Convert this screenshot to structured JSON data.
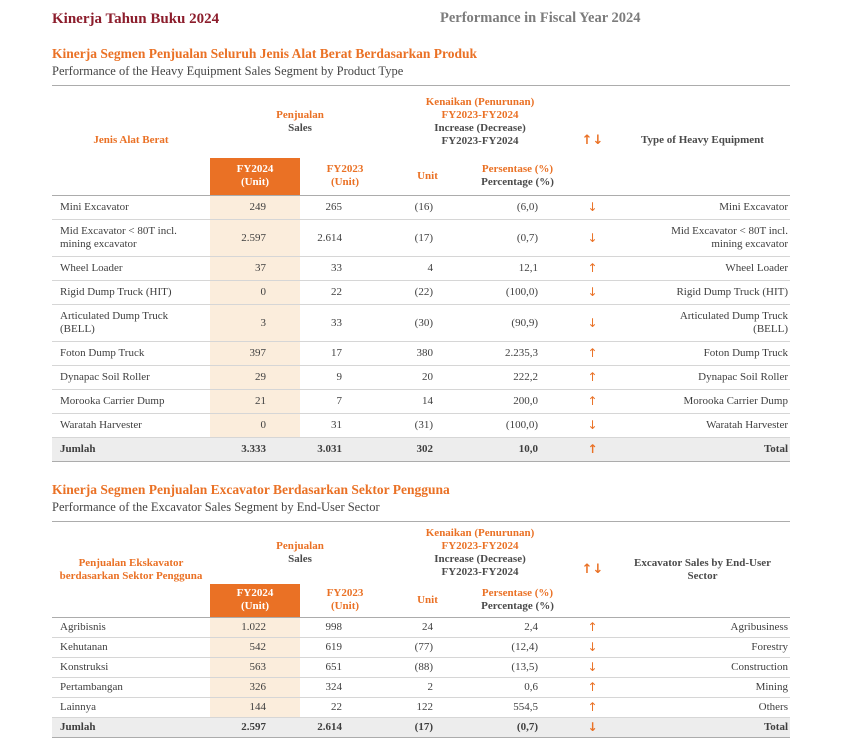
{
  "page": {
    "title_id": "Kinerja Tahun Buku 2024",
    "title_en": "Performance in Fiscal Year 2024"
  },
  "icons": {
    "updown": "↑↓",
    "up": "↑",
    "down": "↓"
  },
  "colors": {
    "accent": "#EA7125",
    "title_red": "#8C1D2C",
    "gray_title": "#7C7C7C",
    "text": "#3E3E3E",
    "header_dark": "#4B4B4B",
    "fy24_bg": "#FBEDDC",
    "total_bg": "#EDEDED",
    "line": "#D6D6D6",
    "line_strong": "#ACACAC"
  },
  "sections": [
    {
      "title_id": "Kinerja Segmen Penjualan Seluruh Jenis Alat Berat Berdasarkan Produk",
      "title_en": "Performance of the Heavy Equipment Sales Segment by Product Type",
      "table": {
        "col1": "Jenis Alat Berat",
        "sales_id": "Penjualan",
        "sales_en": "Sales",
        "change_l1": "Kenaikan (Penurunan)",
        "change_l2": "FY2023-FY2024",
        "change_l3": "Increase (Decrease)",
        "change_l4": "FY2023-FY2024",
        "col7": "Type of Heavy Equipment",
        "sub_fy2024_1": "FY2024",
        "sub_fy2024_2": "(Unit)",
        "sub_fy2023_1": "FY2023",
        "sub_fy2023_2": "(Unit)",
        "sub_unit": "Unit",
        "sub_pct_1": "Persentase (%)",
        "sub_pct_2": "Percentage (%)",
        "rows": [
          {
            "name": "Mini Excavator",
            "fy2024": "249",
            "fy2023": "265",
            "unit": "(16)",
            "pct": "(6,0)",
            "dir": "down",
            "name_en": "Mini Excavator"
          },
          {
            "name": "Mid Excavator < 80T incl. mining excavator",
            "fy2024": "2.597",
            "fy2023": "2.614",
            "unit": "(17)",
            "pct": "(0,7)",
            "dir": "down",
            "name_en": "Mid Excavator < 80T incl. mining excavator"
          },
          {
            "name": "Wheel Loader",
            "fy2024": "37",
            "fy2023": "33",
            "unit": "4",
            "pct": "12,1",
            "dir": "up",
            "name_en": "Wheel Loader"
          },
          {
            "name": "Rigid Dump Truck (HIT)",
            "fy2024": "0",
            "fy2023": "22",
            "unit": "(22)",
            "pct": "(100,0)",
            "dir": "down",
            "name_en": "Rigid Dump Truck (HIT)"
          },
          {
            "name": "Articulated Dump Truck (BELL)",
            "fy2024": "3",
            "fy2023": "33",
            "unit": "(30)",
            "pct": "(90,9)",
            "dir": "down",
            "name_en": "Articulated Dump Truck (BELL)"
          },
          {
            "name": "Foton Dump Truck",
            "fy2024": "397",
            "fy2023": "17",
            "unit": "380",
            "pct": "2.235,3",
            "dir": "up",
            "name_en": "Foton Dump Truck"
          },
          {
            "name": "Dynapac Soil Roller",
            "fy2024": "29",
            "fy2023": "9",
            "unit": "20",
            "pct": "222,2",
            "dir": "up",
            "name_en": "Dynapac Soil Roller"
          },
          {
            "name": "Morooka Carrier Dump",
            "fy2024": "21",
            "fy2023": "7",
            "unit": "14",
            "pct": "200,0",
            "dir": "up",
            "name_en": "Morooka Carrier Dump"
          },
          {
            "name": "Waratah Harvester",
            "fy2024": "0",
            "fy2023": "31",
            "unit": "(31)",
            "pct": "(100,0)",
            "dir": "down",
            "name_en": "Waratah Harvester"
          }
        ],
        "total": {
          "name": "Jumlah",
          "fy2024": "3.333",
          "fy2023": "3.031",
          "unit": "302",
          "pct": "10,0",
          "dir": "up",
          "name_en": "Total"
        }
      }
    },
    {
      "title_id": "Kinerja Segmen Penjualan Excavator Berdasarkan Sektor Pengguna",
      "title_en": "Performance of the Excavator Sales Segment by End-User Sector",
      "table": {
        "col1": "Penjualan Ekskavator berdasarkan Sektor Pengguna",
        "sales_id": "Penjualan",
        "sales_en": "Sales",
        "change_l1": "Kenaikan (Penurunan)",
        "change_l2": "FY2023-FY2024",
        "change_l3": "Increase (Decrease)",
        "change_l4": "FY2023-FY2024",
        "col7": "Excavator Sales by End-User Sector",
        "sub_fy2024_1": "FY2024",
        "sub_fy2024_2": "(Unit)",
        "sub_fy2023_1": "FY2023",
        "sub_fy2023_2": "(Unit)",
        "sub_unit": "Unit",
        "sub_pct_1": "Persentase (%)",
        "sub_pct_2": "Percentage (%)",
        "rows": [
          {
            "name": "Agribisnis",
            "fy2024": "1.022",
            "fy2023": "998",
            "unit": "24",
            "pct": "2,4",
            "dir": "up",
            "name_en": "Agribusiness"
          },
          {
            "name": "Kehutanan",
            "fy2024": "542",
            "fy2023": "619",
            "unit": "(77)",
            "pct": "(12,4)",
            "dir": "down",
            "name_en": "Forestry"
          },
          {
            "name": "Konstruksi",
            "fy2024": "563",
            "fy2023": "651",
            "unit": "(88)",
            "pct": "(13,5)",
            "dir": "down",
            "name_en": "Construction"
          },
          {
            "name": "Pertambangan",
            "fy2024": "326",
            "fy2023": "324",
            "unit": "2",
            "pct": "0,6",
            "dir": "up",
            "name_en": "Mining"
          },
          {
            "name": "Lainnya",
            "fy2024": "144",
            "fy2023": "22",
            "unit": "122",
            "pct": "554,5",
            "dir": "up",
            "name_en": "Others"
          }
        ],
        "total": {
          "name": "Jumlah",
          "fy2024": "2.597",
          "fy2023": "2.614",
          "unit": "(17)",
          "pct": "(0,7)",
          "dir": "down",
          "name_en": "Total"
        }
      }
    }
  ]
}
